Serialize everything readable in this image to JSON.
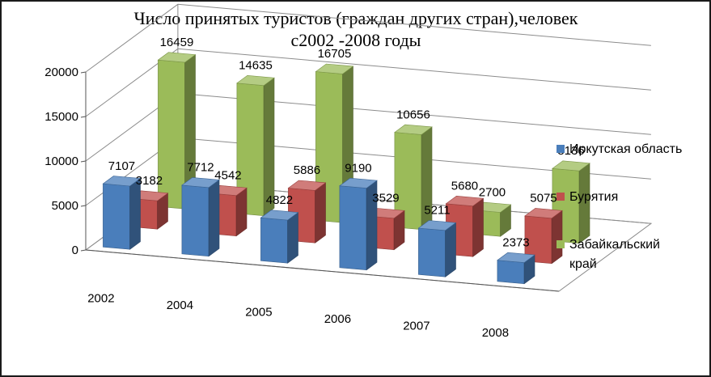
{
  "chart_data": {
    "type": "bar",
    "title_line1": "Число принятых туристов (граждан других стран),человек",
    "title_line2": "с2002 -2008 годы",
    "categories": [
      "2002",
      "2004",
      "2005",
      "2006",
      "2007",
      "2008"
    ],
    "series": [
      {
        "name": "Иркутская область",
        "values": [
          7107,
          7712,
          4822,
          9190,
          5211,
          2373
        ],
        "color": "#4a7ebb"
      },
      {
        "name": "Бурятия",
        "values": [
          3182,
          4542,
          5886,
          3529,
          5680,
          5075
        ],
        "color": "#c0504d"
      },
      {
        "name": "Забайкальский край",
        "values": [
          16459,
          14635,
          16705,
          10656,
          2700,
          8136
        ],
        "color": "#9bbb59"
      }
    ],
    "legend_lines": [
      [
        "Иркутская область"
      ],
      [
        "Бурятия"
      ],
      [
        "Забайкальский",
        "край"
      ]
    ],
    "yticks": [
      "0",
      "5000",
      "10000",
      "15000",
      "20000"
    ],
    "ylim": [
      0,
      20000
    ],
    "grid": true,
    "legend_position": "right"
  }
}
